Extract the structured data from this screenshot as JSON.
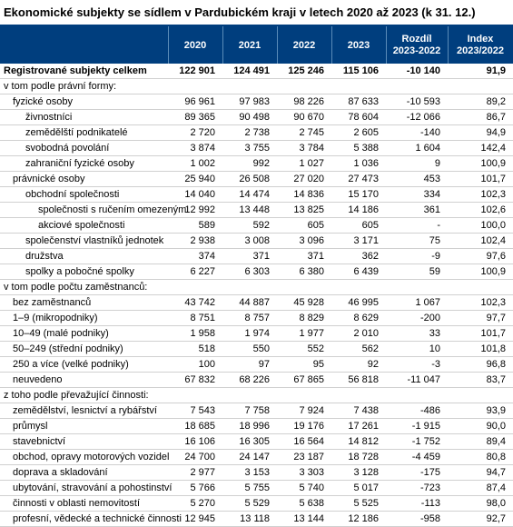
{
  "title": "Ekonomické subjekty se sídlem v Pardubickém kraji v letech 2020 až 2023 (k 31. 12.)",
  "columns": [
    "",
    "2020",
    "2021",
    "2022",
    "2023",
    "Rozdíl 2023-2022",
    "Index 2023/2022"
  ],
  "header_bg": "#003e7e",
  "header_fg": "#ffffff",
  "rows": [
    {
      "label": "Registrované subjekty celkem",
      "bold": true,
      "indent": 0,
      "v": [
        "122 901",
        "124 491",
        "125 246",
        "115 106",
        "-10 140",
        "91,9"
      ]
    },
    {
      "label": "v tom podle právní formy:",
      "bold": false,
      "indent": 0,
      "v": [
        "",
        "",
        "",
        "",
        "",
        ""
      ]
    },
    {
      "label": "fyzické osoby",
      "bold": false,
      "indent": 1,
      "v": [
        "96 961",
        "97 983",
        "98 226",
        "87 633",
        "-10 593",
        "89,2"
      ]
    },
    {
      "label": "živnostníci",
      "bold": false,
      "indent": 2,
      "v": [
        "89 365",
        "90 498",
        "90 670",
        "78 604",
        "-12 066",
        "86,7"
      ]
    },
    {
      "label": "zemědělští podnikatelé",
      "bold": false,
      "indent": 2,
      "v": [
        "2 720",
        "2 738",
        "2 745",
        "2 605",
        "-140",
        "94,9"
      ]
    },
    {
      "label": "svobodná povolání",
      "bold": false,
      "indent": 2,
      "v": [
        "3 874",
        "3 755",
        "3 784",
        "5 388",
        "1 604",
        "142,4"
      ]
    },
    {
      "label": "zahraniční fyzické osoby",
      "bold": false,
      "indent": 2,
      "v": [
        "1 002",
        "992",
        "1 027",
        "1 036",
        "9",
        "100,9"
      ]
    },
    {
      "label": "právnické osoby",
      "bold": false,
      "indent": 1,
      "v": [
        "25 940",
        "26 508",
        "27 020",
        "27 473",
        "453",
        "101,7"
      ]
    },
    {
      "label": "obchodní společnosti",
      "bold": false,
      "indent": 2,
      "v": [
        "14 040",
        "14 474",
        "14 836",
        "15 170",
        "334",
        "102,3"
      ]
    },
    {
      "label": "společnosti s ručením omezeným",
      "bold": false,
      "indent": 3,
      "v": [
        "12 992",
        "13 448",
        "13 825",
        "14 186",
        "361",
        "102,6"
      ]
    },
    {
      "label": "akciové společnosti",
      "bold": false,
      "indent": 3,
      "v": [
        "589",
        "592",
        "605",
        "605",
        "-",
        "100,0"
      ]
    },
    {
      "label": "společenství vlastníků jednotek",
      "bold": false,
      "indent": 2,
      "v": [
        "2 938",
        "3 008",
        "3 096",
        "3 171",
        "75",
        "102,4"
      ]
    },
    {
      "label": "družstva",
      "bold": false,
      "indent": 2,
      "v": [
        "374",
        "371",
        "371",
        "362",
        "-9",
        "97,6"
      ]
    },
    {
      "label": "spolky a pobočné spolky",
      "bold": false,
      "indent": 2,
      "v": [
        "6 227",
        "6 303",
        "6 380",
        "6 439",
        "59",
        "100,9"
      ]
    },
    {
      "label": "v tom podle počtu zaměstnanců:",
      "bold": false,
      "indent": 0,
      "v": [
        "",
        "",
        "",
        "",
        "",
        ""
      ]
    },
    {
      "label": "bez zaměstnanců",
      "bold": false,
      "indent": 1,
      "v": [
        "43 742",
        "44 887",
        "45 928",
        "46 995",
        "1 067",
        "102,3"
      ]
    },
    {
      "label": "1–9 (mikropodniky)",
      "bold": false,
      "indent": 1,
      "v": [
        "8 751",
        "8 757",
        "8 829",
        "8 629",
        "-200",
        "97,7"
      ]
    },
    {
      "label": "10–49 (malé podniky)",
      "bold": false,
      "indent": 1,
      "v": [
        "1 958",
        "1 974",
        "1 977",
        "2 010",
        "33",
        "101,7"
      ]
    },
    {
      "label": "50–249 (střední podniky)",
      "bold": false,
      "indent": 1,
      "v": [
        "518",
        "550",
        "552",
        "562",
        "10",
        "101,8"
      ]
    },
    {
      "label": "250 a více (velké podniky)",
      "bold": false,
      "indent": 1,
      "v": [
        "100",
        "97",
        "95",
        "92",
        "-3",
        "96,8"
      ]
    },
    {
      "label": "neuvedeno",
      "bold": false,
      "indent": 1,
      "v": [
        "67 832",
        "68 226",
        "67 865",
        "56 818",
        "-11 047",
        "83,7"
      ]
    },
    {
      "label": "z toho podle převažující činnosti:",
      "bold": false,
      "indent": 0,
      "v": [
        "",
        "",
        "",
        "",
        "",
        ""
      ]
    },
    {
      "label": "zemědělství, lesnictví a rybářství",
      "bold": false,
      "indent": 1,
      "v": [
        "7 543",
        "7 758",
        "7 924",
        "7 438",
        "-486",
        "93,9"
      ]
    },
    {
      "label": "průmysl",
      "bold": false,
      "indent": 1,
      "v": [
        "18 685",
        "18 996",
        "19 176",
        "17 261",
        "-1 915",
        "90,0"
      ]
    },
    {
      "label": "stavebnictví",
      "bold": false,
      "indent": 1,
      "v": [
        "16 106",
        "16 305",
        "16 564",
        "14 812",
        "-1 752",
        "89,4"
      ]
    },
    {
      "label": "obchod, opravy motorových vozidel",
      "bold": false,
      "indent": 1,
      "v": [
        "24 700",
        "24 147",
        "23 187",
        "18 728",
        "-4 459",
        "80,8"
      ]
    },
    {
      "label": "doprava a skladování",
      "bold": false,
      "indent": 1,
      "v": [
        "2 977",
        "3 153",
        "3 303",
        "3 128",
        "-175",
        "94,7"
      ]
    },
    {
      "label": "ubytování, stravování a pohostinství",
      "bold": false,
      "indent": 1,
      "v": [
        "5 766",
        "5 755",
        "5 740",
        "5 017",
        "-723",
        "87,4"
      ]
    },
    {
      "label": "činnosti v oblasti nemovitostí",
      "bold": false,
      "indent": 1,
      "v": [
        "5 270",
        "5 529",
        "5 638",
        "5 525",
        "-113",
        "98,0"
      ]
    },
    {
      "label": "profesní, vědecké a technické činnosti",
      "bold": false,
      "indent": 1,
      "v": [
        "12 945",
        "13 118",
        "13 144",
        "12 186",
        "-958",
        "92,7"
      ]
    }
  ]
}
